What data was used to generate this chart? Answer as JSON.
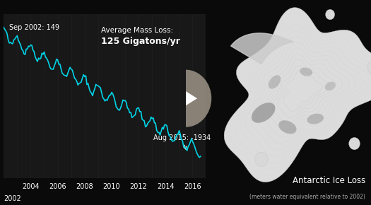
{
  "title": "Antarctic Ice Loss",
  "subtitle": "(meters water equivalent relative to 2002)",
  "background_color": "#0a0a0a",
  "line_color": "#00d4e8",
  "line_width": 1.2,
  "annotation_start_label": "Sep 2002: 149",
  "annotation_end_label": "Aug 2015: -1934",
  "avg_mass_loss_line1": "Average Mass Loss:",
  "avg_mass_loss_line2": "125 Gigatons/yr",
  "x_start_year": 2002,
  "x_end_year": 2017,
  "x_tick_years": [
    2004,
    2006,
    2008,
    2010,
    2012,
    2014,
    2016
  ],
  "x_label_2002": "2002",
  "play_button_color": "#9e9488",
  "play_button_alpha": 0.85,
  "bar_color": "#1e1e1e",
  "text_color": "#ffffff",
  "dim_text_color": "#aaaaaa"
}
